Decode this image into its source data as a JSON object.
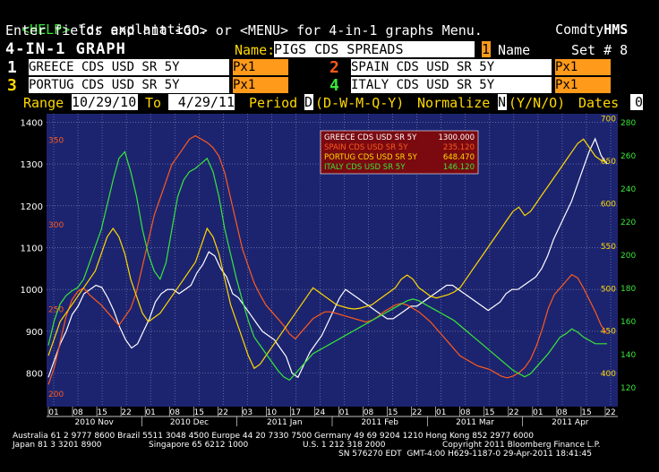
{
  "header": {
    "help_key": "<HELP>",
    "help_text": " for explanation.",
    "brand_prefix": "Comdty",
    "brand_suffix": "HMS",
    "instructions": "Enter fields and hit <GO> or <MENU> for 4-in-1 graphs Menu."
  },
  "title_row": {
    "screen_title": "4-IN-1 GRAPH",
    "name_label": "Name:",
    "name_value": "PIGS CDS SPREADS",
    "name_num": "1",
    "name_word": "Name",
    "set_label": "Set # 8"
  },
  "securities": [
    {
      "num": "1",
      "name": "GREECE CDS USD SR 5Y",
      "field": "Px1",
      "num_color": "#ffffff"
    },
    {
      "num": "2",
      "name": "SPAIN CDS USD SR 5Y",
      "field": "Px1",
      "num_color": "#ff5a1a"
    },
    {
      "num": "3",
      "name": "PORTUG CDS USD SR 5Y",
      "field": "Px1",
      "num_color": "#ffd800"
    },
    {
      "num": "4",
      "name": "ITALY CDS USD SR 5Y",
      "field": "Px1",
      "num_color": "#39e639"
    }
  ],
  "range_row": {
    "range_label": "Range",
    "from_date": "10/29/10",
    "to_label": "To",
    "to_date": "4/29/11",
    "period_label": "Period",
    "period_value": "D",
    "period_options": "(D-W-M-Q-Y)",
    "normalize_label": "Normalize",
    "normalize_value": "N",
    "normalize_options": "(Y/N/O)",
    "dates_label": "Dates",
    "dates_value": "0"
  },
  "chart_data": {
    "type": "line",
    "title": "",
    "xlabel": "",
    "ylabel": "",
    "x_day_ticks": [
      "01",
      "08",
      "15",
      "22",
      "01",
      "08",
      "15",
      "22",
      "03",
      "10",
      "17",
      "24",
      "01",
      "08",
      "15",
      "22",
      "01",
      "08",
      "15",
      "22",
      "01",
      "08",
      "15",
      "22"
    ],
    "x_month_labels": [
      "2010 Nov",
      "2010 Dec",
      "2011 Jan",
      "2011 Feb",
      "2011 Mar",
      "2011 Apr"
    ],
    "axes": {
      "greece": {
        "ticks": [
          800,
          900,
          1000,
          1100,
          1200,
          1300,
          1400
        ],
        "ylim": [
          720,
          1420
        ],
        "color": "#ffffff"
      },
      "spain": {
        "ticks": [
          200,
          250,
          300,
          350
        ],
        "ylim": [
          192,
          365
        ],
        "color": "#ff5a1a"
      },
      "portugal": {
        "ticks": [
          400,
          450,
          500,
          550,
          600,
          650,
          700
        ],
        "ylim": [
          360,
          705
        ],
        "color": "#ffd800"
      },
      "italy": {
        "ticks": [
          120,
          140,
          160,
          180,
          200,
          220,
          240,
          260,
          280
        ],
        "ylim": [
          108,
          285
        ],
        "color": "#39e639"
      }
    },
    "legend_position": "top-center",
    "series": [
      {
        "name": "GREECE CDS USD SR 5Y",
        "last": "1300.000",
        "color": "#ffffff",
        "values": [
          790,
          830,
          870,
          900,
          940,
          960,
          990,
          1000,
          1010,
          1005,
          980,
          950,
          910,
          880,
          860,
          870,
          900,
          930,
          970,
          990,
          1000,
          1000,
          990,
          1000,
          1010,
          1040,
          1060,
          1090,
          1080,
          1050,
          1030,
          990,
          980,
          960,
          940,
          920,
          900,
          890,
          880,
          860,
          840,
          800,
          790,
          820,
          850,
          870,
          890,
          920,
          950,
          980,
          1000,
          990,
          980,
          970,
          960,
          950,
          940,
          930,
          930,
          940,
          950,
          960,
          960,
          970,
          980,
          990,
          1000,
          1010,
          1010,
          1000,
          990,
          980,
          970,
          960,
          950,
          960,
          970,
          990,
          1000,
          1000,
          1010,
          1020,
          1030,
          1050,
          1080,
          1120,
          1150,
          1180,
          1210,
          1250,
          1290,
          1330,
          1360,
          1320,
          1300
        ]
      },
      {
        "name": "SPAIN CDS USD SR 5Y",
        "last": "235.120",
        "color": "#ff5a1a",
        "values": [
          205,
          215,
          230,
          245,
          255,
          260,
          262,
          258,
          255,
          252,
          248,
          244,
          240,
          245,
          250,
          260,
          275,
          290,
          305,
          315,
          325,
          335,
          340,
          345,
          350,
          352,
          350,
          348,
          345,
          340,
          330,
          315,
          300,
          285,
          275,
          265,
          258,
          252,
          248,
          244,
          240,
          235,
          232,
          236,
          240,
          244,
          246,
          248,
          248,
          247,
          246,
          245,
          244,
          243,
          242,
          243,
          245,
          248,
          250,
          252,
          253,
          252,
          250,
          248,
          245,
          242,
          238,
          234,
          230,
          226,
          222,
          220,
          218,
          216,
          215,
          214,
          212,
          210,
          209,
          210,
          212,
          215,
          220,
          228,
          238,
          250,
          258,
          262,
          266,
          270,
          268,
          262,
          255,
          248,
          240,
          235
        ]
      },
      {
        "name": "PORTUG CDS USD SR 5Y",
        "last": "648.470",
        "color": "#ffd800",
        "values": [
          420,
          440,
          460,
          470,
          480,
          490,
          500,
          510,
          520,
          540,
          560,
          570,
          560,
          540,
          510,
          490,
          470,
          460,
          465,
          470,
          480,
          490,
          500,
          510,
          520,
          530,
          550,
          570,
          560,
          540,
          510,
          480,
          460,
          440,
          420,
          405,
          410,
          420,
          430,
          440,
          450,
          460,
          470,
          480,
          490,
          500,
          495,
          490,
          485,
          480,
          478,
          476,
          475,
          476,
          478,
          480,
          485,
          490,
          495,
          500,
          510,
          515,
          510,
          500,
          495,
          490,
          488,
          490,
          492,
          495,
          500,
          510,
          520,
          530,
          540,
          550,
          560,
          570,
          580,
          590,
          595,
          585,
          590,
          600,
          610,
          620,
          630,
          640,
          650,
          660,
          670,
          675,
          665,
          655,
          650,
          648
        ]
      },
      {
        "name": "ITALY CDS USD SR 5Y",
        "last": "146.120",
        "color": "#39e639",
        "values": [
          145,
          160,
          170,
          175,
          178,
          180,
          185,
          195,
          205,
          215,
          230,
          245,
          258,
          262,
          250,
          235,
          215,
          200,
          190,
          185,
          195,
          215,
          235,
          245,
          250,
          252,
          255,
          258,
          250,
          235,
          215,
          200,
          185,
          172,
          160,
          150,
          145,
          140,
          135,
          130,
          126,
          124,
          128,
          132,
          136,
          140,
          142,
          144,
          146,
          148,
          150,
          152,
          154,
          156,
          158,
          160,
          162,
          164,
          166,
          168,
          170,
          172,
          173,
          172,
          170,
          168,
          166,
          164,
          162,
          160,
          157,
          154,
          151,
          148,
          145,
          142,
          139,
          136,
          133,
          130,
          128,
          126,
          128,
          132,
          136,
          140,
          145,
          150,
          152,
          155,
          153,
          150,
          148,
          146,
          146,
          146
        ]
      }
    ]
  },
  "footer": {
    "line1": "Australia 61 2 9777 8600 Brazil 5511 3048 4500 Europe 44 20 7330 7500 Germany 49 69 9204 1210 Hong Kong 852 2977 6000",
    "line2a": "Japan 81 3 3201 8900",
    "line2b": "Singapore 65 6212 1000",
    "line2c": "U.S. 1 212 318 2000",
    "line2d": "Copyright 2011 Bloomberg Finance L.P.",
    "line3": "SN 576270 EDT  GMT-4:00 H629-1187-0 29-Apr-2011 18:41:45"
  }
}
